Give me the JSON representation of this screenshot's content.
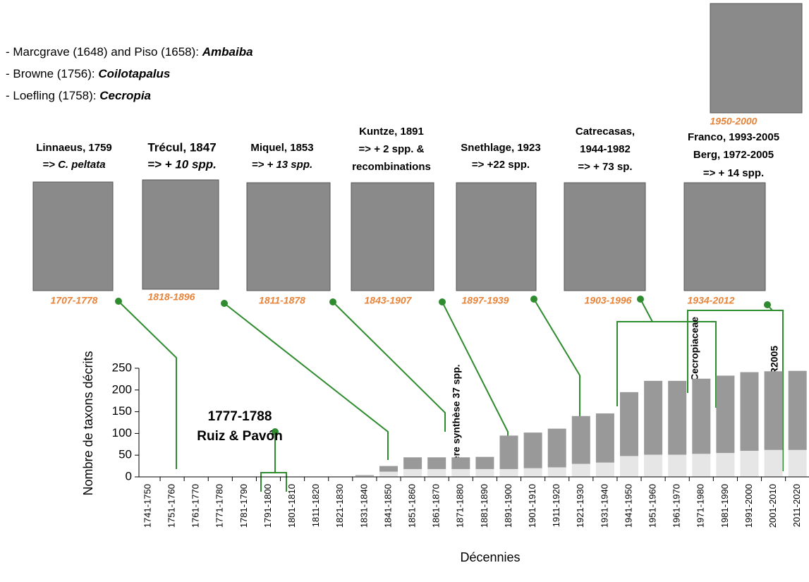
{
  "header": {
    "lines": [
      {
        "text": "- Marcgrave (1648) and Piso (1658): ",
        "genus": "Ambaiba"
      },
      {
        "text": "- Browne (1756): ",
        "genus": "Coilotapalus"
      },
      {
        "text": "- Loefling (1758): ",
        "genus": "Cecropia"
      }
    ]
  },
  "people": [
    {
      "lines": [
        "Linnaeus, 1759",
        "=> C. peltata"
      ],
      "dates": "1707-1778"
    },
    {
      "lines": [
        "Trécul, 1847",
        "=> + 10 spp."
      ],
      "dates": "1818-1896"
    },
    {
      "lines": [
        "Miquel, 1853",
        "=> + 13 spp."
      ],
      "dates": "1811-1878"
    },
    {
      "lines": [
        "Kuntze, 1891",
        "=> + 2 spp. &",
        "recombinations"
      ],
      "dates": "1843-1907"
    },
    {
      "lines": [
        "Snethlage, 1923",
        "=> +22 spp."
      ],
      "dates": "1897-1939"
    },
    {
      "lines": [
        "Catrecasas,",
        "1944-1982",
        "=> + 73 sp."
      ],
      "dates": "1903-1996"
    },
    {
      "lines": [
        "Franco, 1993-2005",
        "Berg, 1972-2005",
        "=> + 14 spp."
      ],
      "dates": "1934-2012"
    }
  ],
  "top_portrait_dates": "1950-2000",
  "annotations": {
    "ruiz_years": "1777-1788",
    "ruiz_names": "Ruiz & Pavón",
    "synthesis": "1ère synthèse 37 spp.",
    "family": "Cecropiaceae",
    "berg": "B&FR2005"
  },
  "chart_data": {
    "type": "bar",
    "stacked": true,
    "y_label": "Nombre de taxons décrits",
    "x_label": "Décennies",
    "categories": [
      "1741-1750",
      "1751-1760",
      "1761-1770",
      "1771-1780",
      "1781-1790",
      "1791-1800",
      "1801-1810",
      "1811-1820",
      "1821-1830",
      "1831-1840",
      "1841-1850",
      "1851-1860",
      "1861-1870",
      "1871-1880",
      "1881-1890",
      "1891-1900",
      "1901-1910",
      "1911-1920",
      "1921-1930",
      "1931-1940",
      "1941-1950",
      "1951-1960",
      "1961-1970",
      "1971-1980",
      "1981-1990",
      "1991-2000",
      "2001-2010",
      "2011-2020"
    ],
    "series": [
      {
        "color": "#e6e6e6",
        "values": [
          0,
          0,
          0,
          0,
          0,
          0,
          0,
          0,
          1,
          2,
          12,
          18,
          18,
          18,
          18,
          18,
          20,
          22,
          30,
          33,
          48,
          51,
          51,
          53,
          55,
          60,
          62,
          62
        ]
      },
      {
        "color": "#999999",
        "values": [
          0,
          0,
          0,
          0,
          0,
          0,
          0,
          0,
          0,
          2,
          13,
          27,
          27,
          27,
          28,
          77,
          82,
          89,
          110,
          113,
          147,
          170,
          170,
          173,
          178,
          181,
          181,
          182
        ]
      }
    ],
    "ylim": [
      0,
      250
    ],
    "yticks": [
      0,
      50,
      100,
      150,
      200,
      250
    ]
  }
}
